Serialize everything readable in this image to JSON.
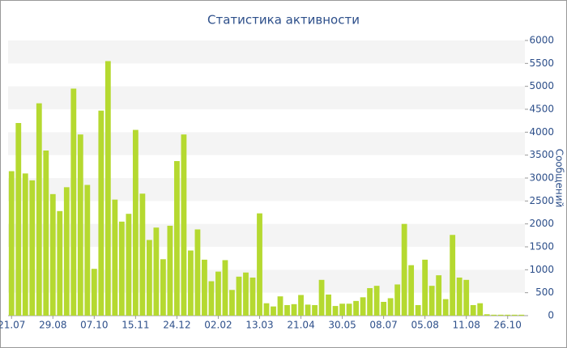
{
  "chart_data": {
    "type": "bar",
    "title": "Статистика активности",
    "y_label": "Сообщений",
    "categories": [
      "21.07",
      null,
      null,
      null,
      null,
      null,
      "29.08",
      null,
      null,
      null,
      null,
      null,
      "07.10",
      null,
      null,
      null,
      null,
      null,
      "15.11",
      null,
      null,
      null,
      null,
      null,
      "24.12",
      null,
      null,
      null,
      null,
      null,
      "02.02",
      null,
      null,
      null,
      null,
      null,
      "13.03",
      null,
      null,
      null,
      null,
      null,
      "21.04",
      null,
      null,
      null,
      null,
      null,
      "30.05",
      null,
      null,
      null,
      null,
      null,
      "08.07",
      null,
      null,
      null,
      null,
      null,
      "05.08",
      null,
      null,
      null,
      null,
      null,
      "11.08",
      null,
      null,
      null,
      null,
      null,
      "26.10",
      null,
      null
    ],
    "values": [
      3150,
      4200,
      3100,
      2950,
      4630,
      3600,
      2650,
      2280,
      2800,
      4950,
      3950,
      2850,
      1020,
      4470,
      5550,
      2530,
      2050,
      2220,
      4050,
      2660,
      1650,
      1920,
      1230,
      1960,
      3370,
      3950,
      1420,
      1880,
      1220,
      750,
      960,
      1210,
      560,
      850,
      940,
      830,
      2230,
      270,
      200,
      420,
      230,
      250,
      450,
      240,
      230,
      780,
      460,
      210,
      260,
      260,
      320,
      400,
      600,
      650,
      300,
      380,
      680,
      2000,
      1100,
      230,
      1220,
      650,
      880,
      360,
      1760,
      830,
      780,
      230,
      270,
      30,
      20,
      20,
      20,
      20,
      20
    ],
    "color": "#b5d930",
    "ylim": [
      0,
      6000
    ],
    "yticks": [
      0,
      500,
      1000,
      1500,
      2000,
      2500,
      3000,
      3500,
      4000,
      4500,
      5000,
      5500,
      6000
    ],
    "grid": "bands"
  }
}
